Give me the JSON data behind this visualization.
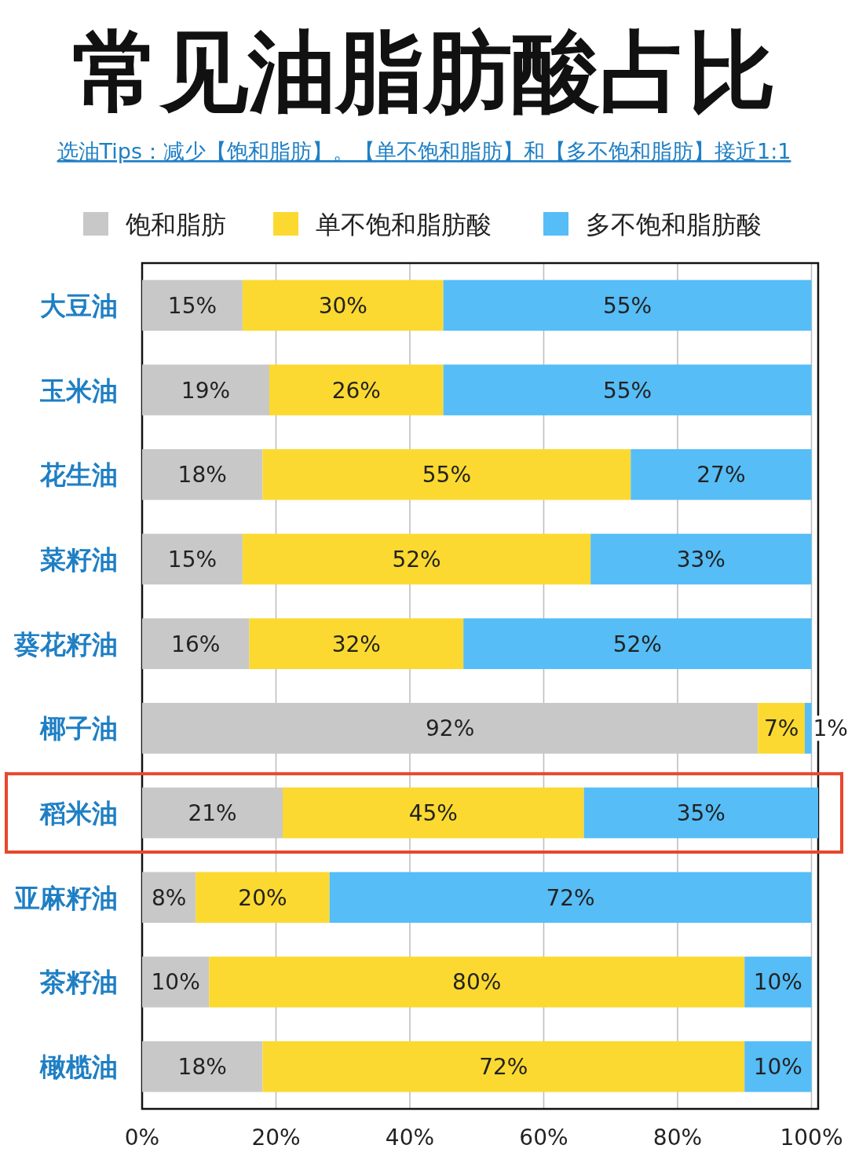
{
  "chart_data": {
    "type": "bar",
    "orientation": "horizontal",
    "stacked": true,
    "title": "常见油脂肪酸占比",
    "subtitle": "选油Tips：减少【饱和脂肪】。【单不饱和脂肪】和【多不饱和脂肪】接近1:1",
    "categories": [
      "大豆油",
      "玉米油",
      "花生油",
      "菜籽油",
      "葵花籽油",
      "椰子油",
      "稻米油",
      "亚麻籽油",
      "茶籽油",
      "橄榄油"
    ],
    "series": [
      {
        "name": "饱和脂肪",
        "color": "#c8c8c8",
        "values": [
          15,
          19,
          18,
          15,
          16,
          92,
          21,
          8,
          10,
          18
        ],
        "value_labels": [
          "15%",
          "19%",
          "18%",
          "15%",
          "16%",
          "92%",
          "21%",
          "8%",
          "10%",
          "18%"
        ]
      },
      {
        "name": "单不饱和脂肪酸",
        "color": "#fbd930",
        "values": [
          30,
          26,
          55,
          52,
          32,
          7,
          45,
          20,
          80,
          72
        ],
        "value_labels": [
          "30%",
          "26%",
          "55%",
          "52%",
          "32%",
          "7%",
          "45%",
          "20%",
          "80%",
          "72%"
        ]
      },
      {
        "name": "多不饱和脂肪酸",
        "color": "#56bdf6",
        "values": [
          55,
          55,
          27,
          33,
          52,
          1,
          35,
          72,
          10,
          10
        ],
        "value_labels": [
          "55%",
          "55%",
          "27%",
          "33%",
          "52%",
          "1%",
          "35%",
          "72%",
          "10%",
          "10%"
        ]
      }
    ],
    "xlim": [
      0,
      101
    ],
    "xticks": [
      {
        "value": 0,
        "label": "0%"
      },
      {
        "value": 20,
        "label": "20%"
      },
      {
        "value": 40,
        "label": "40%"
      },
      {
        "value": 60,
        "label": "60%"
      },
      {
        "value": 80,
        "label": "80%"
      },
      {
        "value": 100,
        "label": "100%"
      }
    ],
    "grid": "x",
    "legend": "top"
  }
}
